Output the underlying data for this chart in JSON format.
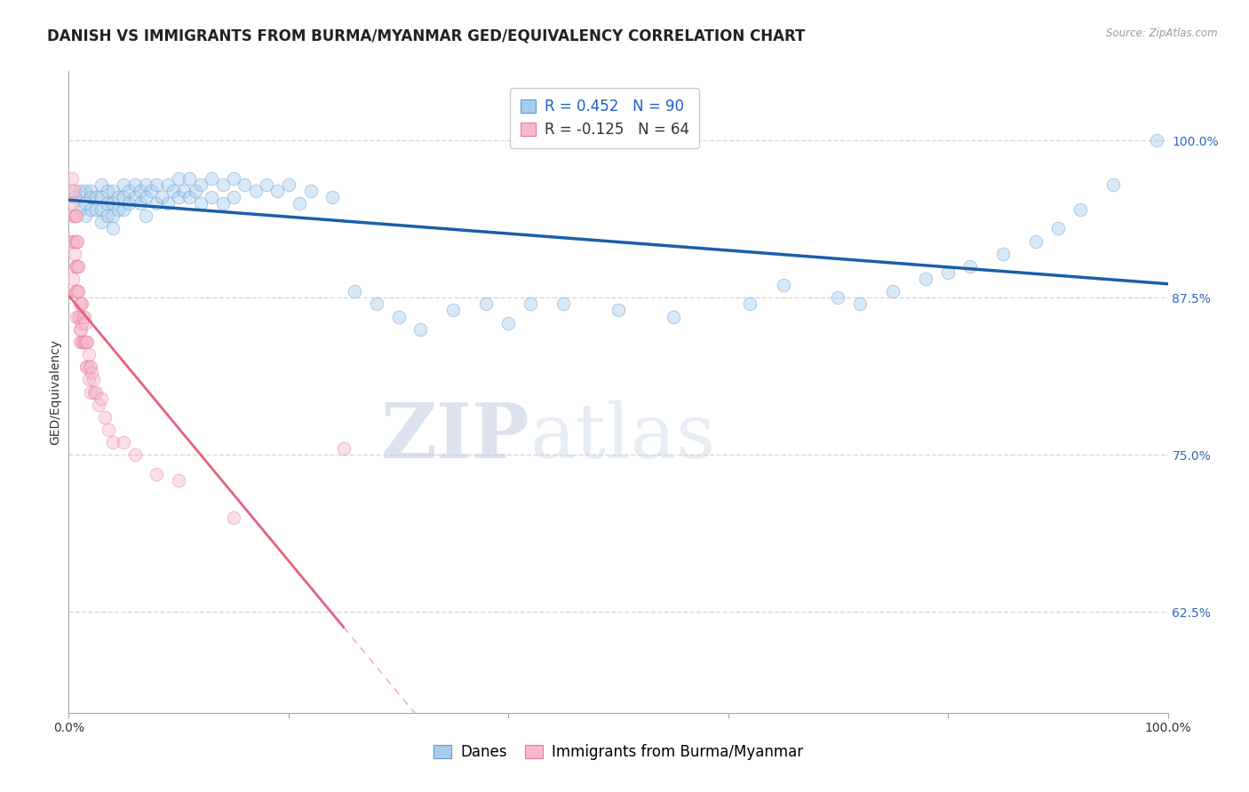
{
  "title": "DANISH VS IMMIGRANTS FROM BURMA/MYANMAR GED/EQUIVALENCY CORRELATION CHART",
  "source": "Source: ZipAtlas.com",
  "ylabel": "GED/Equivalency",
  "xlim": [
    0.0,
    1.0
  ],
  "ylim": [
    0.545,
    1.055
  ],
  "yticks": [
    0.625,
    0.75,
    0.875,
    1.0
  ],
  "ytick_labels": [
    "62.5%",
    "75.0%",
    "87.5%",
    "100.0%"
  ],
  "danes_color": "#A8CCEE",
  "danes_edge_color": "#6699CC",
  "immigrants_color": "#F5B8CC",
  "immigrants_edge_color": "#E87898",
  "trend_danes_color": "#1A5EA8",
  "trend_immigrants_color": "#E8607A",
  "R_danes": 0.452,
  "N_danes": 90,
  "R_immigrants": -0.125,
  "N_immigrants": 64,
  "legend_danes": "Danes",
  "legend_immigrants": "Immigrants from Burma/Myanmar",
  "watermark_zip": "ZIP",
  "watermark_atlas": "atlas",
  "background_color": "#ffffff",
  "grid_color": "#d8d8d8",
  "title_fontsize": 12,
  "axis_label_fontsize": 10,
  "tick_fontsize": 10,
  "legend_fontsize": 12,
  "marker_size": 110,
  "marker_alpha": 0.45,
  "danes_x": [
    0.005,
    0.01,
    0.01,
    0.015,
    0.015,
    0.015,
    0.02,
    0.02,
    0.02,
    0.025,
    0.025,
    0.03,
    0.03,
    0.03,
    0.03,
    0.035,
    0.035,
    0.035,
    0.04,
    0.04,
    0.04,
    0.04,
    0.045,
    0.045,
    0.05,
    0.05,
    0.05,
    0.055,
    0.055,
    0.06,
    0.06,
    0.065,
    0.065,
    0.07,
    0.07,
    0.07,
    0.075,
    0.08,
    0.08,
    0.085,
    0.09,
    0.09,
    0.095,
    0.1,
    0.1,
    0.105,
    0.11,
    0.11,
    0.115,
    0.12,
    0.12,
    0.13,
    0.13,
    0.14,
    0.14,
    0.15,
    0.15,
    0.16,
    0.17,
    0.18,
    0.19,
    0.2,
    0.21,
    0.22,
    0.24,
    0.26,
    0.28,
    0.3,
    0.32,
    0.35,
    0.38,
    0.4,
    0.42,
    0.45,
    0.5,
    0.55,
    0.62,
    0.65,
    0.7,
    0.72,
    0.75,
    0.78,
    0.8,
    0.82,
    0.85,
    0.88,
    0.9,
    0.92,
    0.95,
    0.99
  ],
  "danes_y": [
    0.955,
    0.96,
    0.945,
    0.96,
    0.95,
    0.94,
    0.96,
    0.955,
    0.945,
    0.955,
    0.945,
    0.965,
    0.955,
    0.945,
    0.935,
    0.96,
    0.95,
    0.94,
    0.96,
    0.95,
    0.94,
    0.93,
    0.955,
    0.945,
    0.965,
    0.955,
    0.945,
    0.96,
    0.95,
    0.965,
    0.955,
    0.96,
    0.95,
    0.965,
    0.955,
    0.94,
    0.96,
    0.965,
    0.95,
    0.955,
    0.965,
    0.95,
    0.96,
    0.97,
    0.955,
    0.96,
    0.97,
    0.955,
    0.96,
    0.965,
    0.95,
    0.97,
    0.955,
    0.965,
    0.95,
    0.97,
    0.955,
    0.965,
    0.96,
    0.965,
    0.96,
    0.965,
    0.95,
    0.96,
    0.955,
    0.88,
    0.87,
    0.86,
    0.85,
    0.865,
    0.87,
    0.855,
    0.87,
    0.87,
    0.865,
    0.86,
    0.87,
    0.885,
    0.875,
    0.87,
    0.88,
    0.89,
    0.895,
    0.9,
    0.91,
    0.92,
    0.93,
    0.945,
    0.965,
    1.0
  ],
  "immigrants_x": [
    0.003,
    0.003,
    0.003,
    0.004,
    0.004,
    0.004,
    0.004,
    0.005,
    0.005,
    0.005,
    0.006,
    0.006,
    0.006,
    0.006,
    0.007,
    0.007,
    0.007,
    0.007,
    0.007,
    0.008,
    0.008,
    0.008,
    0.009,
    0.009,
    0.009,
    0.01,
    0.01,
    0.01,
    0.01,
    0.011,
    0.011,
    0.012,
    0.012,
    0.012,
    0.013,
    0.013,
    0.014,
    0.014,
    0.015,
    0.015,
    0.016,
    0.016,
    0.017,
    0.017,
    0.018,
    0.018,
    0.019,
    0.02,
    0.02,
    0.021,
    0.022,
    0.023,
    0.025,
    0.027,
    0.03,
    0.033,
    0.036,
    0.04,
    0.05,
    0.06,
    0.08,
    0.1,
    0.15,
    0.25
  ],
  "immigrants_y": [
    0.97,
    0.96,
    0.92,
    0.95,
    0.94,
    0.92,
    0.89,
    0.96,
    0.94,
    0.91,
    0.94,
    0.92,
    0.9,
    0.88,
    0.94,
    0.92,
    0.9,
    0.88,
    0.86,
    0.92,
    0.9,
    0.88,
    0.9,
    0.88,
    0.86,
    0.87,
    0.86,
    0.85,
    0.84,
    0.87,
    0.85,
    0.87,
    0.855,
    0.84,
    0.86,
    0.84,
    0.86,
    0.84,
    0.855,
    0.84,
    0.84,
    0.82,
    0.84,
    0.82,
    0.83,
    0.81,
    0.82,
    0.82,
    0.8,
    0.815,
    0.81,
    0.8,
    0.8,
    0.79,
    0.795,
    0.78,
    0.77,
    0.76,
    0.76,
    0.75,
    0.735,
    0.73,
    0.7,
    0.755
  ]
}
